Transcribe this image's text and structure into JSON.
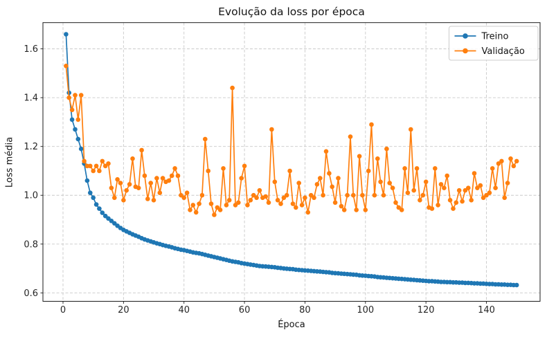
{
  "chart_data": {
    "type": "line",
    "title": "Evolução da loss por época",
    "xlabel": "Época",
    "ylabel": "Loss média",
    "grid": true,
    "grid_style": "dashed",
    "legend_position": "upper right",
    "xlim": [
      -6.64,
      157.74
    ],
    "ylim": [
      0.5655,
      1.7075
    ],
    "xticks": [
      0,
      20,
      40,
      60,
      80,
      100,
      120,
      140
    ],
    "xticklabels": [
      "0",
      "20",
      "40",
      "60",
      "80",
      "100",
      "120",
      "140"
    ],
    "yticks": [
      0.6,
      0.8,
      1.0,
      1.2,
      1.4,
      1.6
    ],
    "yticklabels": [
      "0.6",
      "0.8",
      "1.0",
      "1.2",
      "1.4",
      "1.6"
    ],
    "x": [
      1,
      2,
      3,
      4,
      5,
      6,
      7,
      8,
      9,
      10,
      11,
      12,
      13,
      14,
      15,
      16,
      17,
      18,
      19,
      20,
      21,
      22,
      23,
      24,
      25,
      26,
      27,
      28,
      29,
      30,
      31,
      32,
      33,
      34,
      35,
      36,
      37,
      38,
      39,
      40,
      41,
      42,
      43,
      44,
      45,
      46,
      47,
      48,
      49,
      50,
      51,
      52,
      53,
      54,
      55,
      56,
      57,
      58,
      59,
      60,
      61,
      62,
      63,
      64,
      65,
      66,
      67,
      68,
      69,
      70,
      71,
      72,
      73,
      74,
      75,
      76,
      77,
      78,
      79,
      80,
      81,
      82,
      83,
      84,
      85,
      86,
      87,
      88,
      89,
      90,
      91,
      92,
      93,
      94,
      95,
      96,
      97,
      98,
      99,
      100,
      101,
      102,
      103,
      104,
      105,
      106,
      107,
      108,
      109,
      110,
      111,
      112,
      113,
      114,
      115,
      116,
      117,
      118,
      119,
      120,
      121,
      122,
      123,
      124,
      125,
      126,
      127,
      128,
      129,
      130,
      131,
      132,
      133,
      134,
      135,
      136,
      137,
      138,
      139,
      140,
      141,
      142,
      143,
      144,
      145,
      146,
      147,
      148,
      149,
      150
    ],
    "series": [
      {
        "name": "Treino",
        "color": "#1f77b4",
        "values": [
          1.66,
          1.42,
          1.31,
          1.27,
          1.23,
          1.19,
          1.13,
          1.06,
          1.01,
          0.99,
          0.962,
          0.945,
          0.928,
          0.915,
          0.905,
          0.895,
          0.885,
          0.875,
          0.866,
          0.858,
          0.852,
          0.846,
          0.84,
          0.835,
          0.83,
          0.824,
          0.819,
          0.815,
          0.811,
          0.807,
          0.803,
          0.8,
          0.796,
          0.793,
          0.79,
          0.787,
          0.783,
          0.78,
          0.777,
          0.775,
          0.772,
          0.769,
          0.766,
          0.764,
          0.762,
          0.759,
          0.756,
          0.753,
          0.75,
          0.747,
          0.744,
          0.741,
          0.738,
          0.735,
          0.732,
          0.729,
          0.727,
          0.725,
          0.722,
          0.72,
          0.718,
          0.716,
          0.714,
          0.712,
          0.71,
          0.709,
          0.708,
          0.707,
          0.706,
          0.705,
          0.703,
          0.702,
          0.7,
          0.699,
          0.698,
          0.697,
          0.695,
          0.694,
          0.693,
          0.692,
          0.691,
          0.69,
          0.689,
          0.688,
          0.687,
          0.686,
          0.685,
          0.684,
          0.682,
          0.681,
          0.68,
          0.679,
          0.678,
          0.677,
          0.676,
          0.675,
          0.674,
          0.672,
          0.671,
          0.67,
          0.669,
          0.668,
          0.667,
          0.665,
          0.664,
          0.663,
          0.662,
          0.661,
          0.66,
          0.659,
          0.658,
          0.657,
          0.656,
          0.655,
          0.654,
          0.653,
          0.652,
          0.651,
          0.65,
          0.649,
          0.648,
          0.648,
          0.647,
          0.646,
          0.645,
          0.645,
          0.644,
          0.644,
          0.643,
          0.643,
          0.642,
          0.642,
          0.641,
          0.641,
          0.64,
          0.639,
          0.639,
          0.638,
          0.638,
          0.637,
          0.636,
          0.636,
          0.635,
          0.635,
          0.634,
          0.634,
          0.633,
          0.633,
          0.632,
          0.632
        ]
      },
      {
        "name": "Validação",
        "color": "#ff7f0e",
        "values": [
          1.53,
          1.4,
          1.35,
          1.41,
          1.31,
          1.41,
          1.14,
          1.12,
          1.12,
          1.1,
          1.12,
          1.1,
          1.14,
          1.12,
          1.13,
          1.03,
          0.99,
          1.065,
          1.05,
          0.98,
          1.02,
          1.045,
          1.15,
          1.035,
          1.03,
          1.185,
          1.08,
          0.985,
          1.05,
          0.98,
          1.07,
          1.01,
          1.07,
          1.055,
          1.06,
          1.08,
          1.11,
          1.08,
          1.0,
          0.99,
          1.01,
          0.94,
          0.96,
          0.93,
          0.965,
          1.0,
          1.23,
          1.1,
          0.965,
          0.92,
          0.95,
          0.94,
          1.11,
          0.96,
          0.98,
          1.44,
          0.96,
          0.97,
          1.07,
          1.12,
          0.96,
          0.98,
          1.0,
          0.99,
          1.02,
          0.99,
          0.995,
          0.97,
          1.27,
          1.055,
          0.98,
          0.965,
          0.99,
          1.0,
          1.1,
          0.965,
          0.95,
          1.05,
          0.96,
          0.99,
          0.93,
          1.0,
          0.99,
          1.045,
          1.07,
          1.0,
          1.18,
          1.09,
          1.035,
          0.97,
          1.07,
          0.955,
          0.94,
          1.0,
          1.24,
          1.0,
          0.94,
          1.16,
          1.0,
          0.94,
          1.1,
          1.29,
          1.0,
          1.15,
          1.055,
          1.0,
          1.19,
          1.05,
          1.03,
          0.97,
          0.95,
          0.94,
          1.11,
          1.01,
          1.27,
          1.02,
          1.11,
          0.98,
          1.0,
          1.055,
          0.95,
          0.945,
          1.11,
          0.96,
          1.045,
          1.03,
          1.08,
          0.98,
          0.945,
          0.97,
          1.02,
          0.975,
          1.02,
          1.03,
          0.98,
          1.09,
          1.03,
          1.04,
          0.99,
          1.0,
          1.01,
          1.11,
          1.03,
          1.13,
          1.14,
          0.99,
          1.05,
          1.15,
          1.12,
          1.14
        ]
      }
    ],
    "legend": [
      {
        "label": "Treino",
        "color": "#1f77b4"
      },
      {
        "label": "Validação",
        "color": "#ff7f0e"
      }
    ]
  },
  "style_colors": {
    "grid": "#c9c9c9",
    "spine": "#1a1a1a",
    "tick_text": "#262626",
    "legend_border": "#cccccc",
    "background": "#ffffff"
  }
}
